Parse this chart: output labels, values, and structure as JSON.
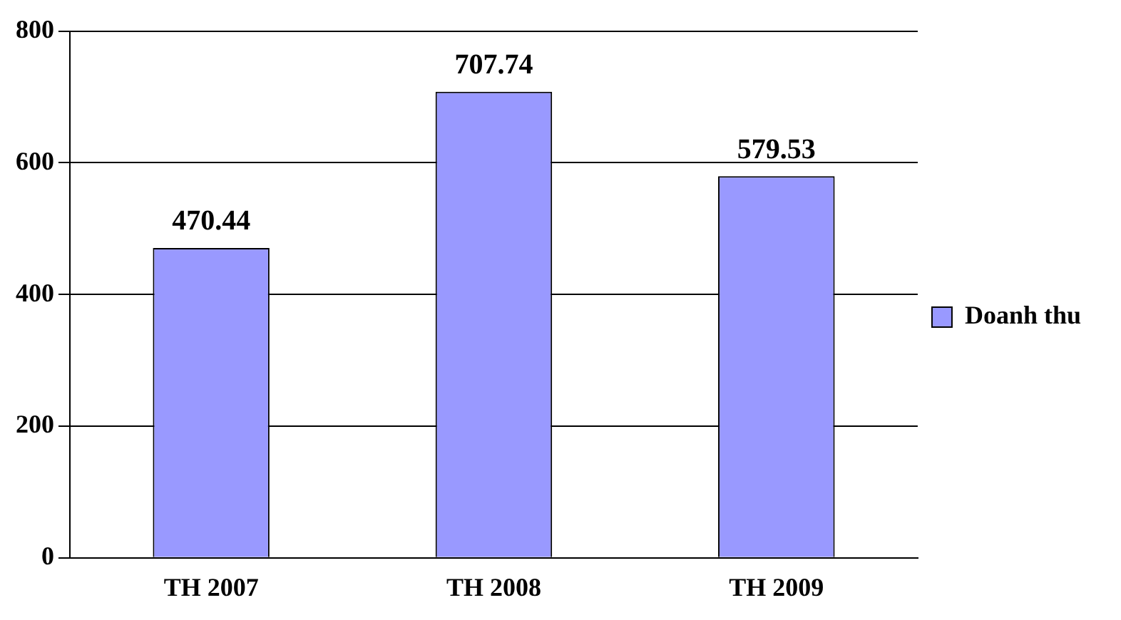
{
  "chart_data": {
    "type": "bar",
    "categories": [
      "TH 2007",
      "TH 2008",
      "TH 2009"
    ],
    "series": [
      {
        "name": "Doanh thu",
        "color": "#9999ff",
        "values": [
          470.44,
          707.74,
          579.53
        ]
      }
    ],
    "ylim": [
      0,
      800
    ],
    "yticks": [
      0,
      200,
      400,
      600,
      800
    ],
    "grid": "y",
    "legend": "right",
    "data_labels": true
  }
}
